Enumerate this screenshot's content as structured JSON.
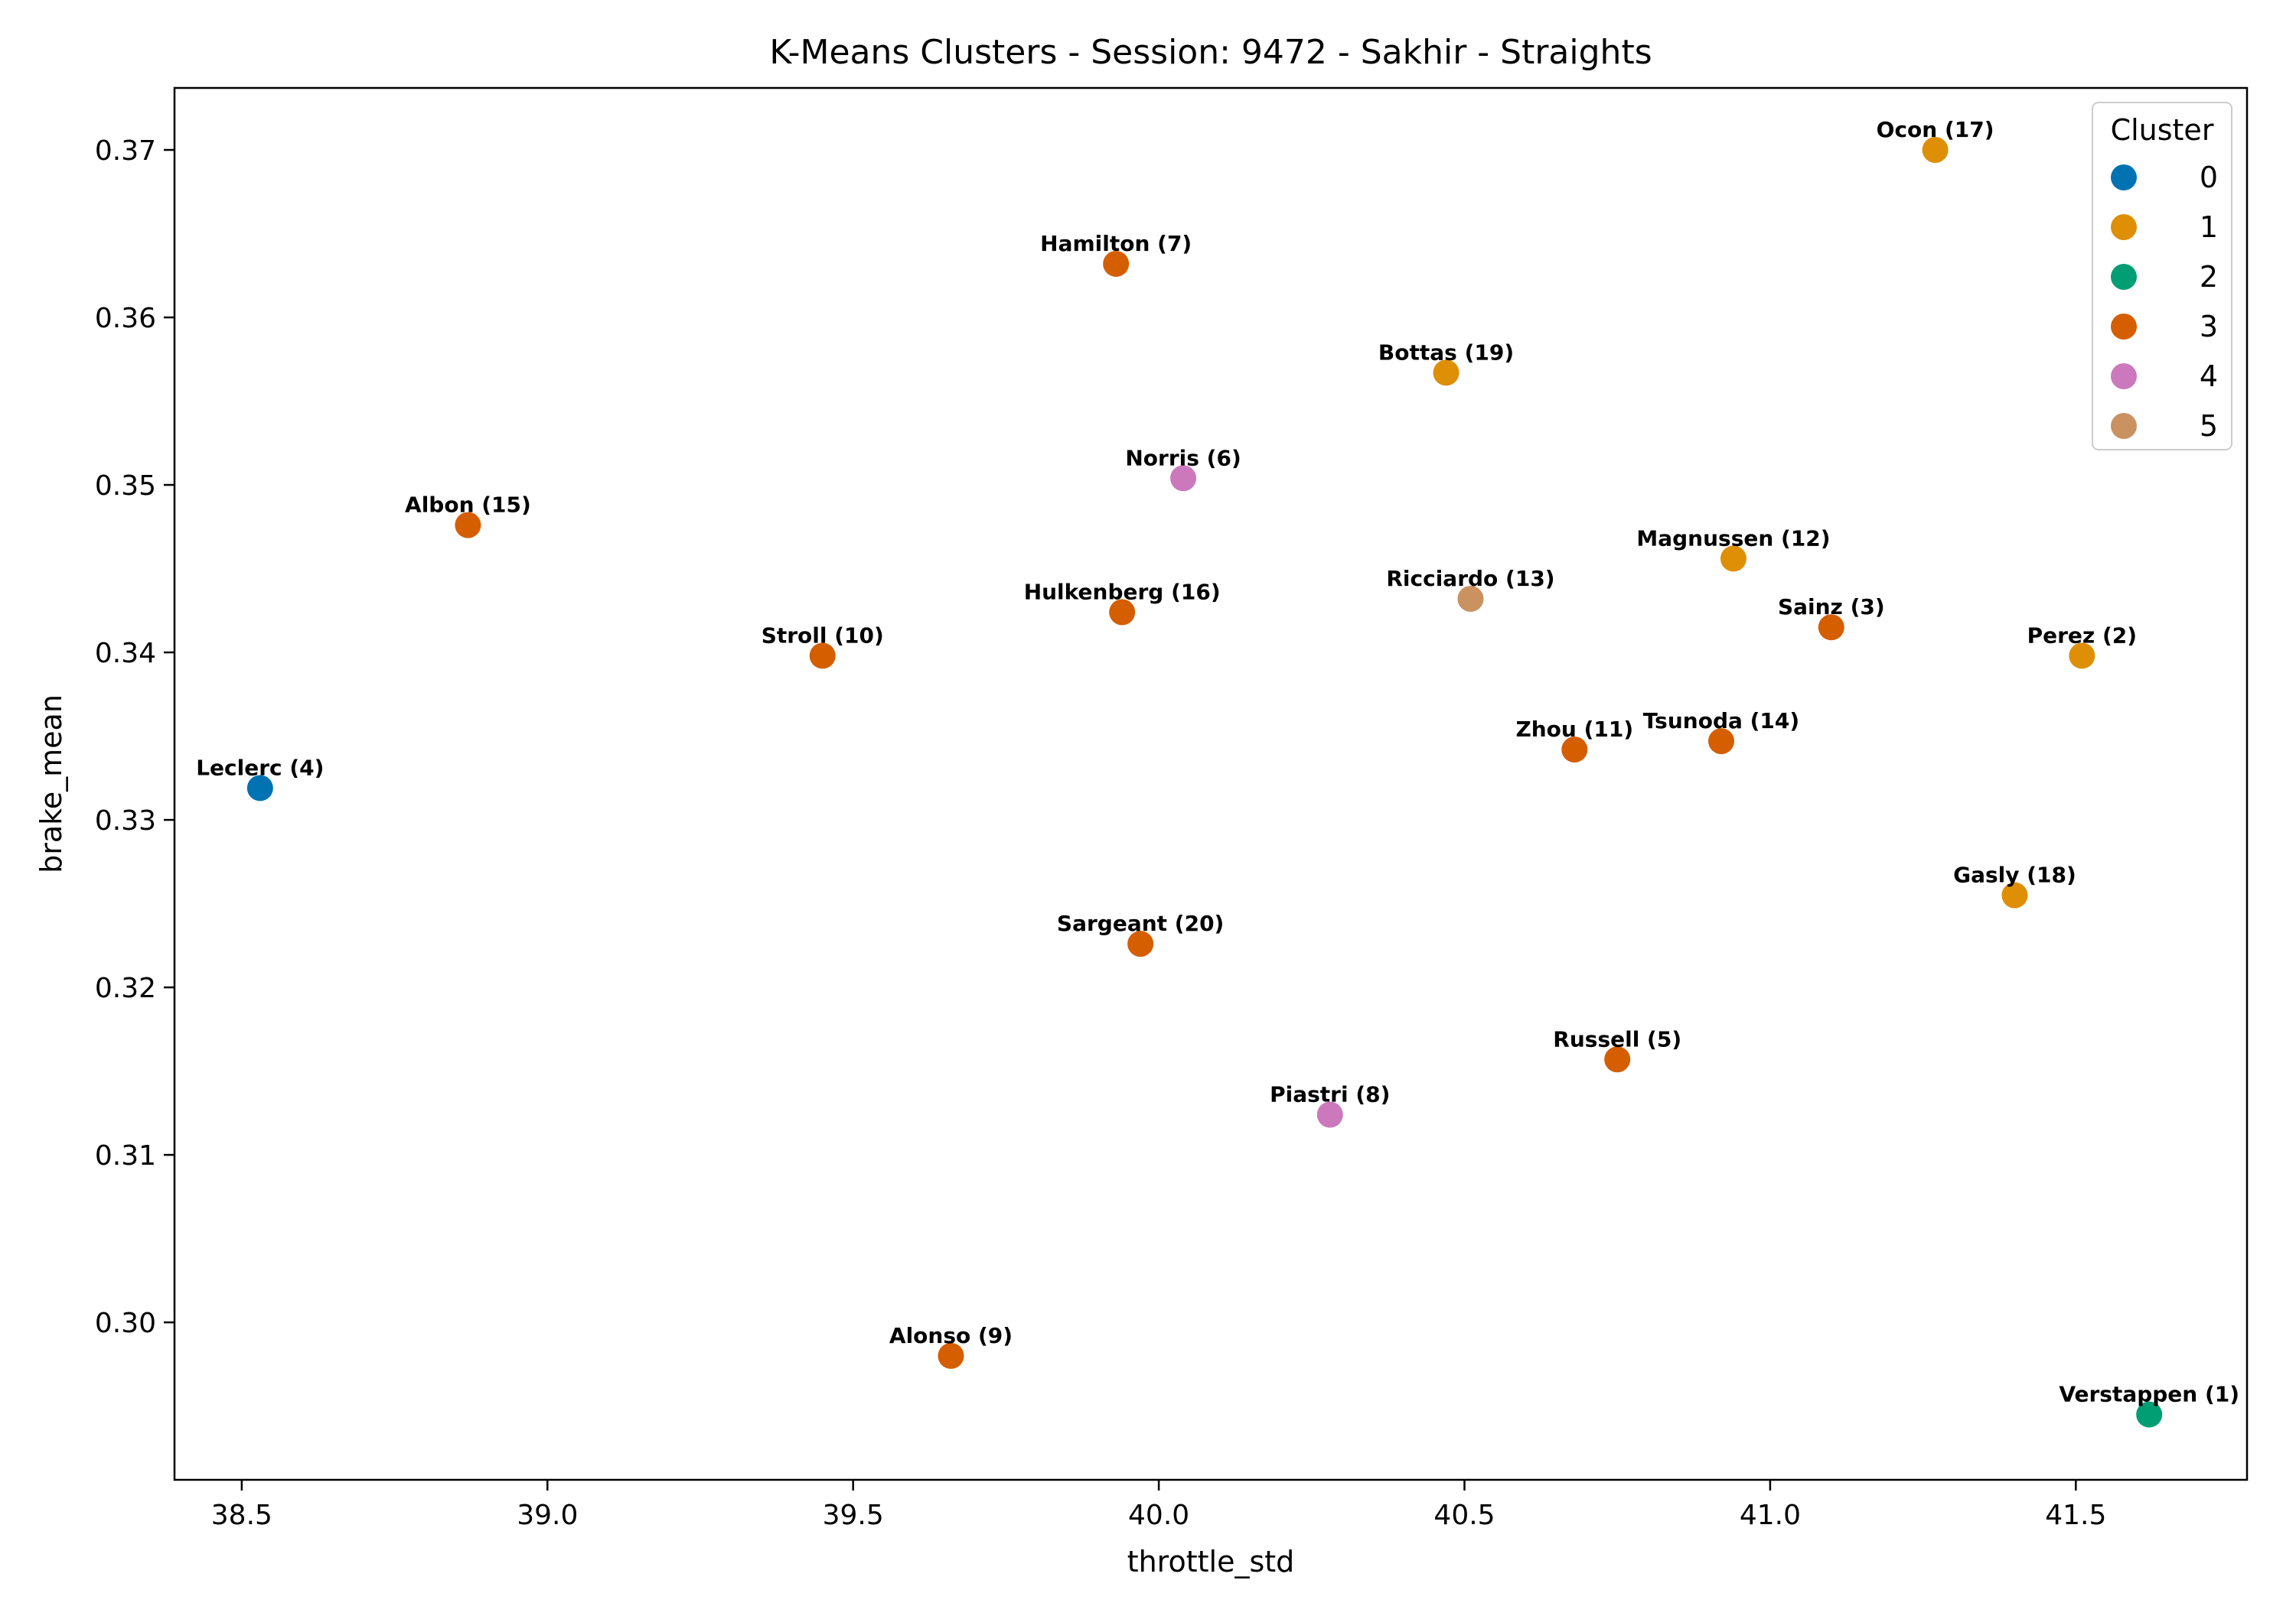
{
  "chart_data": {
    "type": "scatter",
    "title": "K-Means Clusters - Session: 9472 - Sakhir - Straights",
    "xlabel": "throttle_std",
    "ylabel": "brake_mean",
    "xlim": [
      38.39,
      41.78
    ],
    "ylim": [
      0.2906,
      0.3737
    ],
    "xticks": [
      38.5,
      39.0,
      39.5,
      40.0,
      40.5,
      41.0,
      41.5
    ],
    "xtick_labels": [
      "38.5",
      "39.0",
      "39.5",
      "40.0",
      "40.5",
      "41.0",
      "41.5"
    ],
    "yticks": [
      0.3,
      0.31,
      0.32,
      0.33,
      0.34,
      0.35,
      0.36,
      0.37
    ],
    "ytick_labels": [
      "0.30",
      "0.31",
      "0.32",
      "0.33",
      "0.34",
      "0.35",
      "0.36",
      "0.37"
    ],
    "grid": false,
    "legend": {
      "title": "Cluster",
      "placement": "top-right",
      "entries": [
        {
          "label": "0",
          "color": "#0173b2"
        },
        {
          "label": "1",
          "color": "#de8f05"
        },
        {
          "label": "2",
          "color": "#029e73"
        },
        {
          "label": "3",
          "color": "#d55e00"
        },
        {
          "label": "4",
          "color": "#cc78bc"
        },
        {
          "label": "5",
          "color": "#ca9161"
        }
      ]
    },
    "points": [
      {
        "label": "Ocon (17)",
        "x": 41.27,
        "y": 0.37,
        "cluster": 1
      },
      {
        "label": "Hamilton (7)",
        "x": 39.93,
        "y": 0.3632,
        "cluster": 3
      },
      {
        "label": "Bottas (19)",
        "x": 40.47,
        "y": 0.3567,
        "cluster": 1
      },
      {
        "label": "Norris (6)",
        "x": 40.04,
        "y": 0.3504,
        "cluster": 4
      },
      {
        "label": "Albon (15)",
        "x": 38.87,
        "y": 0.3476,
        "cluster": 3
      },
      {
        "label": "Magnussen (12)",
        "x": 40.94,
        "y": 0.3456,
        "cluster": 1
      },
      {
        "label": "Ricciardo (13)",
        "x": 40.51,
        "y": 0.3432,
        "cluster": 5
      },
      {
        "label": "Hulkenberg (16)",
        "x": 39.94,
        "y": 0.3424,
        "cluster": 3
      },
      {
        "label": "Sainz (3)",
        "x": 41.1,
        "y": 0.3415,
        "cluster": 3
      },
      {
        "label": "Stroll (10)",
        "x": 39.45,
        "y": 0.3398,
        "cluster": 3
      },
      {
        "label": "Perez (2)",
        "x": 41.51,
        "y": 0.3398,
        "cluster": 1
      },
      {
        "label": "Tsunoda (14)",
        "x": 40.92,
        "y": 0.3347,
        "cluster": 3
      },
      {
        "label": "Zhou (11)",
        "x": 40.68,
        "y": 0.3342,
        "cluster": 3
      },
      {
        "label": "Leclerc (4)",
        "x": 38.53,
        "y": 0.3319,
        "cluster": 0
      },
      {
        "label": "Gasly (18)",
        "x": 41.4,
        "y": 0.3255,
        "cluster": 1
      },
      {
        "label": "Sargeant (20)",
        "x": 39.97,
        "y": 0.3226,
        "cluster": 3
      },
      {
        "label": "Russell (5)",
        "x": 40.75,
        "y": 0.3157,
        "cluster": 3
      },
      {
        "label": "Piastri (8)",
        "x": 40.28,
        "y": 0.3124,
        "cluster": 4
      },
      {
        "label": "Alonso (9)",
        "x": 39.66,
        "y": 0.298,
        "cluster": 3
      },
      {
        "label": "Verstappen (1)",
        "x": 41.62,
        "y": 0.2945,
        "cluster": 2
      }
    ]
  }
}
